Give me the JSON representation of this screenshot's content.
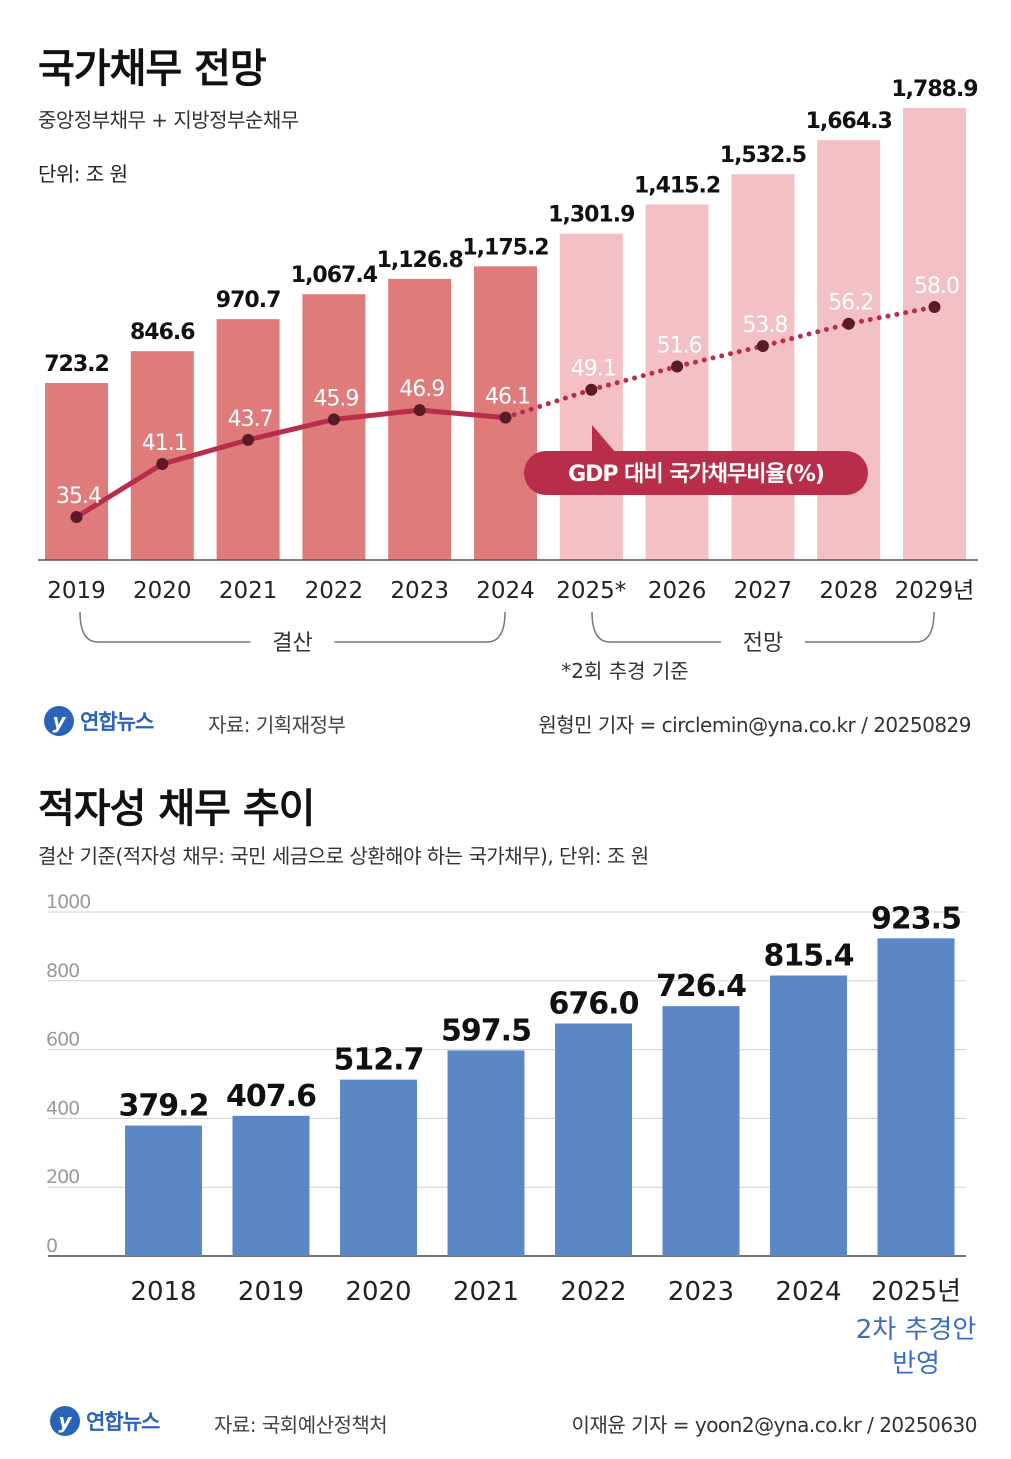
{
  "chart_data": [
    {
      "type": "bar",
      "title": "국가채무 전망",
      "subtitle": "중앙정부채무 + 지방정부순채무",
      "unit": "단위: 조 원",
      "categories": [
        "2019",
        "2020",
        "2021",
        "2022",
        "2023",
        "2024",
        "2025*",
        "2026",
        "2027",
        "2028",
        "2029년"
      ],
      "values": [
        723.2,
        846.6,
        970.7,
        1067.4,
        1126.8,
        1175.2,
        1301.9,
        1415.2,
        1532.5,
        1664.3,
        1788.9
      ],
      "value_labels": [
        "723.2",
        "846.6",
        "970.7",
        "1,067.4",
        "1,126.8",
        "1,175.2",
        "1,301.9",
        "1,415.2",
        "1,532.5",
        "1,664.3",
        "1,788.9"
      ],
      "series": [
        {
          "name": "GDP 대비 국가채무비율(%)",
          "type": "line",
          "values": [
            35.4,
            41.1,
            43.7,
            45.9,
            46.9,
            46.1,
            49.1,
            51.6,
            53.8,
            56.2,
            58.0
          ],
          "labels": [
            "35.4",
            "41.1",
            "43.7",
            "45.9",
            "46.9",
            "46.1",
            "49.1",
            "51.6",
            "53.8",
            "56.2",
            "58.0"
          ]
        }
      ],
      "groups": [
        {
          "label": "결산",
          "from": "2019",
          "to": "2024"
        },
        {
          "label": "전망",
          "from": "2025*",
          "to": "2029년"
        }
      ],
      "note": "*2회 추경 기준",
      "colors": {
        "actual_bar": "#e07b7b",
        "forecast_bar": "#f3c0c6",
        "ratio_line": "#b82e4a"
      }
    },
    {
      "type": "bar",
      "title": "적자성 채무 추이",
      "subtitle": "결산 기준(적자성 채무: 국민 세금으로 상환해야 하는 국가채무), 단위: 조 원",
      "categories": [
        "2018",
        "2019",
        "2020",
        "2021",
        "2022",
        "2023",
        "2024",
        "2025년"
      ],
      "values": [
        379.2,
        407.6,
        512.7,
        597.5,
        676.0,
        726.4,
        815.4,
        923.5
      ],
      "value_labels": [
        "379.2",
        "407.6",
        "512.7",
        "597.5",
        "676.0",
        "726.4",
        "815.4",
        "923.5"
      ],
      "yticks": [
        "0",
        "200",
        "400",
        "600",
        "800",
        "1000"
      ],
      "ylim": [
        0,
        1000
      ],
      "grid": true,
      "annotation": [
        "2차 추경안",
        "반영"
      ],
      "colors": {
        "bar": "#5b87c7",
        "annotation": "#3a6fc0"
      }
    }
  ],
  "footer1": {
    "logo": "연합뉴스",
    "source": "자료: 기획재정부",
    "credit": "원형민 기자 = circlemin@yna.co.kr / 20250829"
  },
  "footer2": {
    "logo": "연합뉴스",
    "source": "자료: 국회예산정책처",
    "credit": "이재윤 기자 = yoon2@yna.co.kr / 20250630"
  }
}
